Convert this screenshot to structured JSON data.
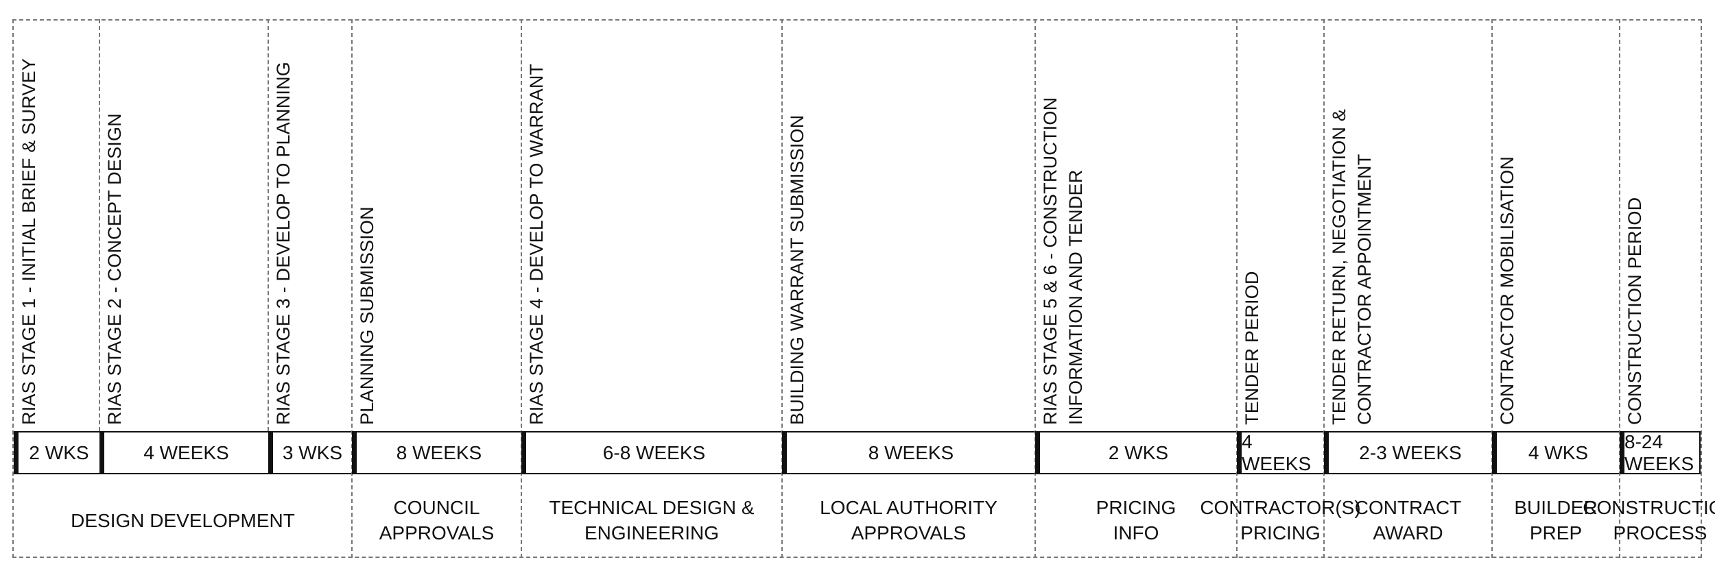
{
  "columns": [
    {
      "stage": "RIAS STAGE 1 - INITIAL BRIEF & SURVEY",
      "duration": "2 WKS"
    },
    {
      "stage": "RIAS STAGE 2 - CONCEPT DESIGN",
      "duration": "4 WEEKS"
    },
    {
      "stage": "RIAS STAGE 3 - DEVELOP TO PLANNING",
      "duration": "3 WKS"
    },
    {
      "stage": "PLANNING SUBMISSION",
      "duration": "8 WEEKS"
    },
    {
      "stage": "RIAS STAGE 4 - DEVELOP TO WARRANT",
      "duration": "6-8 WEEKS"
    },
    {
      "stage": "BUILDING WARRANT SUBMISSION",
      "duration": "8 WEEKS"
    },
    {
      "stage": "RIAS STAGE 5 & 6 - CONSTRUCTION\nINFORMATION AND TENDER",
      "duration": "2 WKS"
    },
    {
      "stage": "TENDER PERIOD",
      "duration": "4 WEEKS"
    },
    {
      "stage": "TENDER RETURN, NEGOTIATION &\nCONTRACTOR APPOINTMENT",
      "duration": "2-3 WEEKS"
    },
    {
      "stage": "CONTRACTOR MOBILISATION",
      "duration": "4 WKS"
    },
    {
      "stage": "CONSTRUCTION PERIOD",
      "duration": "8-24 WEEKS"
    }
  ],
  "phases": [
    "DESIGN DEVELOPMENT",
    "COUNCIL\nAPPROVALS",
    "TECHNICAL DESIGN &\nENGINEERING",
    "LOCAL AUTHORITY\nAPPROVALS",
    "PRICING\nINFO",
    "CONTRACTOR(S)\nPRICING",
    "CONTRACT\nAWARD",
    "BUILDER\nPREP",
    "CONSTRUCTION\nPROCESS"
  ]
}
